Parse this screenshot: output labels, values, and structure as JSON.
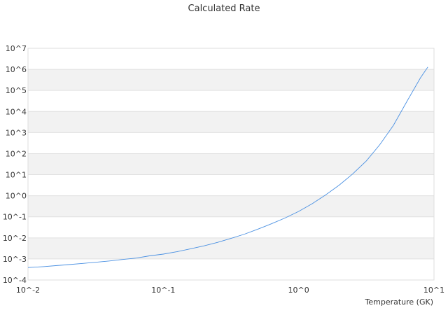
{
  "chart_data": {
    "type": "line",
    "title": "Calculated Rate",
    "xlabel": "Temperature (GK)",
    "ylabel": "",
    "x_scale": "log",
    "y_scale": "log",
    "xlim": [
      0.01,
      10
    ],
    "ylim": [
      0.0001,
      10000000
    ],
    "grid": "horizontal bands",
    "legend": "none",
    "x_ticks": [
      {
        "value": 0.01,
        "label": "10^-2"
      },
      {
        "value": 0.1,
        "label": "10^-1"
      },
      {
        "value": 1,
        "label": "10^0"
      },
      {
        "value": 10,
        "label": "10^1"
      }
    ],
    "y_ticks": [
      {
        "value": 0.0001,
        "label": "10^-4"
      },
      {
        "value": 0.001,
        "label": "10^-3"
      },
      {
        "value": 0.01,
        "label": "10^-2"
      },
      {
        "value": 0.1,
        "label": "10^-1"
      },
      {
        "value": 1,
        "label": "10^0"
      },
      {
        "value": 10,
        "label": "10^1"
      },
      {
        "value": 100,
        "label": "10^2"
      },
      {
        "value": 1000,
        "label": "10^3"
      },
      {
        "value": 10000,
        "label": "10^4"
      },
      {
        "value": 100000,
        "label": "10^5"
      },
      {
        "value": 1000000,
        "label": "10^6"
      },
      {
        "value": 10000000,
        "label": "10^7"
      }
    ],
    "series": [
      {
        "color": "#4a90e2",
        "x": [
          0.01,
          0.013,
          0.016,
          0.02,
          0.025,
          0.032,
          0.04,
          0.05,
          0.063,
          0.079,
          0.1,
          0.126,
          0.158,
          0.2,
          0.251,
          0.316,
          0.398,
          0.5,
          0.631,
          0.794,
          1.0,
          1.259,
          1.585,
          1.995,
          2.512,
          3.162,
          3.981,
          5.012,
          6.31,
          7.943,
          9.0
        ],
        "y": [
          0.00039,
          0.00043,
          0.00048,
          0.00054,
          0.00061,
          0.0007,
          0.0008,
          0.00094,
          0.0011,
          0.0014,
          0.0017,
          0.0022,
          0.003,
          0.0042,
          0.0061,
          0.0094,
          0.015,
          0.026,
          0.047,
          0.088,
          0.18,
          0.42,
          1.1,
          3.2,
          11,
          45,
          270,
          2200,
          30000,
          400000,
          1300000
        ]
      }
    ]
  }
}
